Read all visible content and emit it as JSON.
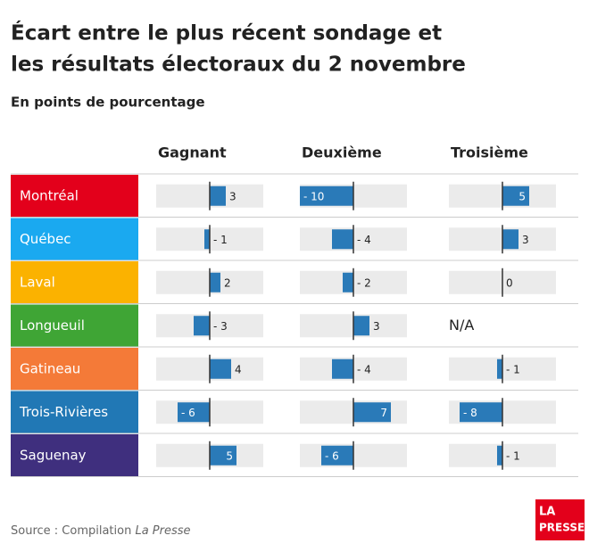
{
  "chart_data": {
    "type": "bar",
    "title": [
      "Écart entre le plus récent sondage et",
      "les résultats électoraux du 2 novembre"
    ],
    "subtitle": "En points de pourcentage",
    "categories": [
      "Montréal",
      "Québec",
      "Laval",
      "Longueuil",
      "Gatineau",
      "Trois-Rivières",
      "Saguenay"
    ],
    "category_colors": [
      "#e3001b",
      "#1aa9f0",
      "#fbb200",
      "#3fa535",
      "#f47a38",
      "#2178b5",
      "#3f2f7e"
    ],
    "series": [
      {
        "name": "Gagnant",
        "color": "#2a7ab8",
        "values": [
          3,
          -1,
          2,
          -3,
          4,
          -6,
          5
        ],
        "value_labels": [
          "3",
          "- 1",
          "2",
          "- 3",
          "4",
          "- 6",
          "5"
        ]
      },
      {
        "name": "Deuxième",
        "color": "#2a7ab8",
        "values": [
          -10,
          -4,
          -2,
          3,
          -4,
          7,
          -6
        ],
        "value_labels": [
          "- 10",
          "- 4",
          "- 2",
          "3",
          "- 4",
          "7",
          "- 6"
        ]
      },
      {
        "name": "Troisième",
        "color": "#2a7ab8",
        "values": [
          5,
          3,
          0,
          null,
          -1,
          -8,
          -1
        ],
        "value_labels": [
          "5",
          "3",
          "0",
          "N/A",
          "- 1",
          "- 8",
          "- 1"
        ]
      }
    ],
    "xlim": [
      -10,
      10
    ],
    "source": [
      "Source : Compilation ",
      "La Presse"
    ],
    "logo": [
      "LA",
      "PRESSE"
    ]
  }
}
